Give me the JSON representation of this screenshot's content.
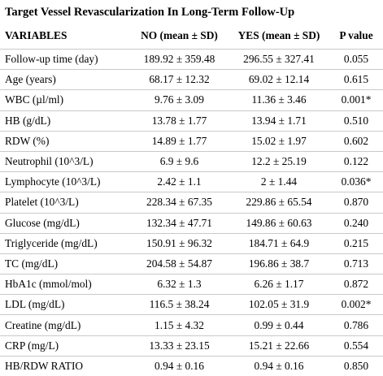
{
  "title": "Target Vessel Revascularization In Long-Term Follow-Up",
  "headers": [
    "VARIABLES",
    "NO (mean ± SD)",
    "YES (mean ± SD)",
    "P value"
  ],
  "rows": [
    {
      "variable": "Follow-up time (day)",
      "no": "189.92 ± 359.48",
      "yes": "296.55 ± 327.41",
      "p": "0.055"
    },
    {
      "variable": "Age (years)",
      "no": "68.17 ± 12.32",
      "yes": "69.02 ± 12.14",
      "p": "0.615"
    },
    {
      "variable": "WBC (µl/ml)",
      "no": "9.76 ± 3.09",
      "yes": "11.36 ± 3.46",
      "p": "0.001*"
    },
    {
      "variable": "HB (g/dL)",
      "no": "13.78 ± 1.77",
      "yes": "13.94 ± 1.71",
      "p": "0.510"
    },
    {
      "variable": "RDW (%)",
      "no": "14.89 ± 1.77",
      "yes": "15.02 ± 1.97",
      "p": "0.602"
    },
    {
      "variable": "Neutrophil (10^3/L)",
      "no": "6.9 ± 9.6",
      "yes": "12.2 ± 25.19",
      "p": "0.122"
    },
    {
      "variable": "Lymphocyte (10^3/L)",
      "no": "2.42 ± 1.1",
      "yes": "2 ± 1.44",
      "p": "0.036*"
    },
    {
      "variable": "Platelet (10^3/L)",
      "no": "228.34 ± 67.35",
      "yes": "229.86 ± 65.54",
      "p": "0.870"
    },
    {
      "variable": "Glucose (mg/dL)",
      "no": "132.34 ± 47.71",
      "yes": "149.86 ± 60.63",
      "p": "0.240"
    },
    {
      "variable": "Triglyceride (mg/dL)",
      "no": "150.91 ± 96.32",
      "yes": "184.71 ± 64.9",
      "p": "0.215"
    },
    {
      "variable": "TC (mg/dL)",
      "no": "204.58 ± 54.87",
      "yes": "196.86 ± 38.7",
      "p": "0.713"
    },
    {
      "variable": "HbA1c (mmol/mol)",
      "no": "6.32 ± 1.3",
      "yes": "6.26 ± 1.17",
      "p": "0.872"
    },
    {
      "variable": "LDL (mg/dL)",
      "no": "116.5 ± 38.24",
      "yes": "102.05 ± 31.9",
      "p": "0.002*"
    },
    {
      "variable": "Creatine (mg/dL)",
      "no": "1.15 ± 4.32",
      "yes": "0.99 ± 0.44",
      "p": "0.786"
    },
    {
      "variable": "CRP (mg/L)",
      "no": "13.33 ± 23.15",
      "yes": "15.21 ± 22.66",
      "p": "0.554"
    },
    {
      "variable": "HB/RDW RATIO",
      "no": "0.94 ± 0.16",
      "yes": "0.94 ± 0.16",
      "p": "0.850"
    }
  ]
}
